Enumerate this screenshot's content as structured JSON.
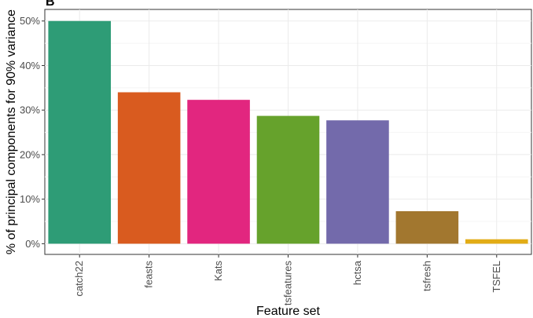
{
  "panel_tag": "B",
  "chart_data": {
    "type": "bar",
    "title": "",
    "xlabel": "Feature set",
    "ylabel": "% of principal components for 90% variance",
    "categories": [
      "catch22",
      "feasts",
      "Kats",
      "tsfeatures",
      "hctsa",
      "tsfresh",
      "TSFEL"
    ],
    "values": [
      50,
      34,
      32.3,
      28.7,
      27.7,
      7.3,
      1.0
    ],
    "colors": [
      "#2e9c76",
      "#d95b1f",
      "#e2267f",
      "#66a22c",
      "#736aab",
      "#a2772f",
      "#e2ac16"
    ],
    "ylim": [
      -2.4,
      52.6
    ],
    "yticks": [
      0,
      10,
      20,
      30,
      40,
      50
    ],
    "ytick_labels": [
      "0%",
      "10%",
      "20%",
      "30%",
      "40%",
      "50%"
    ],
    "grid": true,
    "legend": "none"
  }
}
